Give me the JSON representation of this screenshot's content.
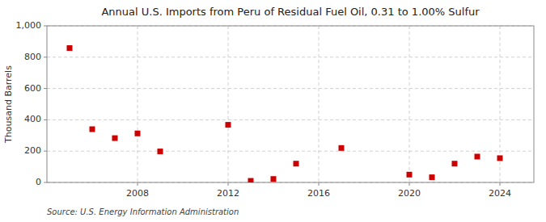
{
  "chart_data": {
    "type": "scatter",
    "title": "Annual U.S. Imports from Peru of Residual Fuel Oil, 0.31 to 1.00% Sulfur",
    "ylabel": "Thousand Barrels",
    "source": "Source: U.S. Energy Information Administration",
    "x": [
      2005,
      2006,
      2007,
      2008,
      2009,
      2012,
      2013,
      2014,
      2015,
      2017,
      2020,
      2021,
      2022,
      2023,
      2024
    ],
    "values": [
      858,
      340,
      283,
      313,
      198,
      368,
      10,
      22,
      120,
      220,
      50,
      33,
      120,
      165,
      155
    ],
    "color": "#cc0000",
    "marker": "square",
    "xlim": [
      2004,
      2025.5
    ],
    "ylim": [
      0,
      1000
    ],
    "xticks": [
      2008,
      2012,
      2016,
      2020,
      2024
    ],
    "yticks": [
      0,
      200,
      400,
      600,
      800,
      {
        "value": 1000,
        "label": "1,000"
      }
    ],
    "grid": true
  }
}
